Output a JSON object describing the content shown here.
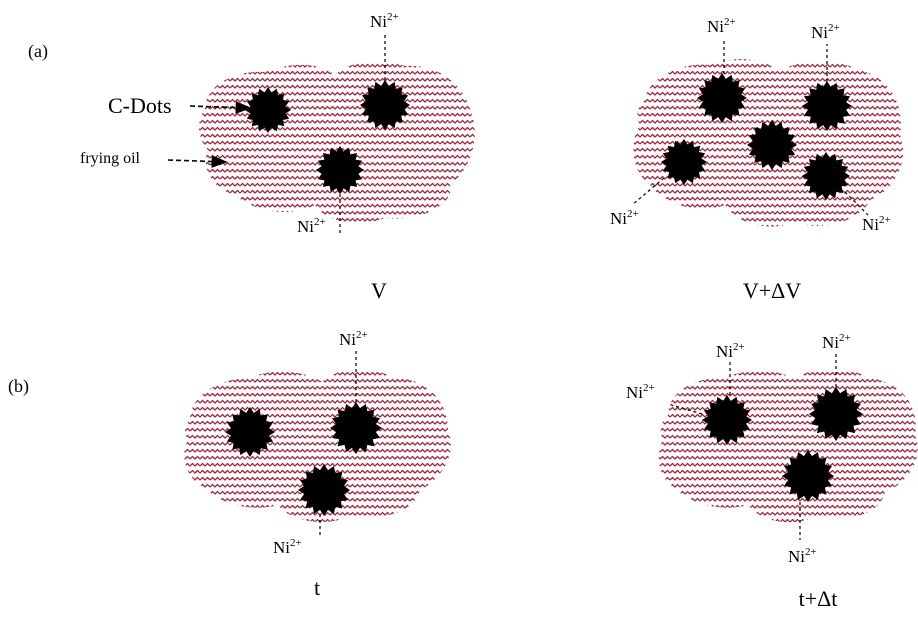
{
  "colors": {
    "oil": "#a0243e",
    "dot": "#000000",
    "background": "#ffffff"
  },
  "row_a": {
    "label": "(a)",
    "left": {
      "caption": "V",
      "ion": "Ni",
      "charge": "2+"
    },
    "right": {
      "caption": "V+ΔV",
      "ion": "Ni",
      "charge": "2+"
    }
  },
  "row_b": {
    "label": "(b)",
    "left": {
      "caption": "t",
      "ion": "Ni",
      "charge": "2+"
    },
    "right": {
      "caption": "t+Δt",
      "ion": "Ni",
      "charge": "2+"
    }
  },
  "legend": {
    "cdots": "C-Dots",
    "oil": "frying oil"
  }
}
